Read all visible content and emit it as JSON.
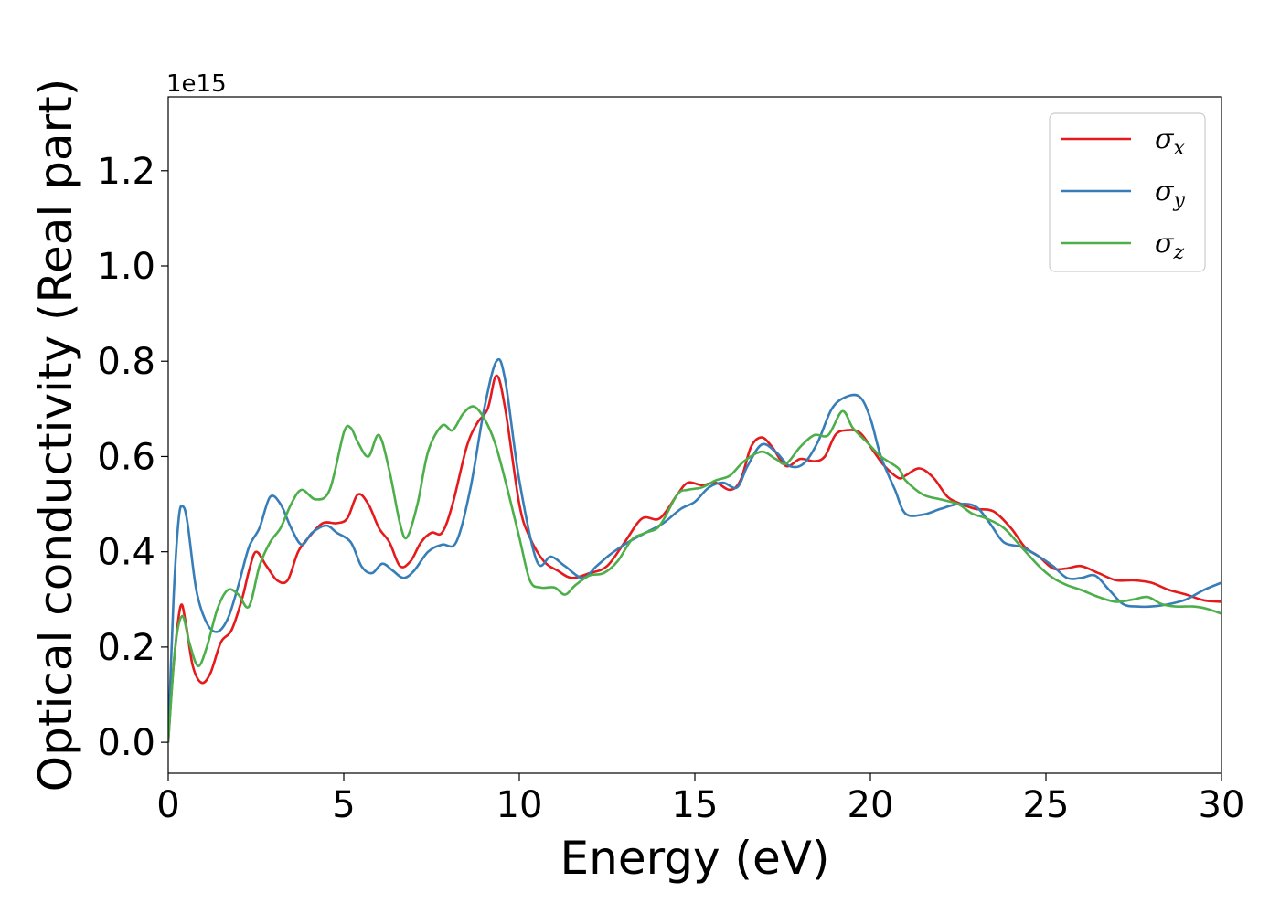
{
  "chart_data": {
    "type": "line",
    "xlabel": "Energy (eV)",
    "ylabel": "Optical conductivity (Real part)",
    "offset_text": "1e15",
    "xlim": [
      0,
      30
    ],
    "ylim": [
      -0.065,
      1.355
    ],
    "xticks": [
      0,
      5,
      10,
      15,
      20,
      25,
      30
    ],
    "xtick_labels": [
      "0",
      "5",
      "10",
      "15",
      "20",
      "25",
      "30"
    ],
    "yticks": [
      0.0,
      0.2,
      0.4,
      0.6,
      0.8,
      1.0,
      1.2
    ],
    "ytick_labels": [
      "0.0",
      "0.2",
      "0.4",
      "0.6",
      "0.8",
      "1.0",
      "1.2"
    ],
    "grid": false,
    "legend_position": "top-right",
    "series": [
      {
        "name": "σx",
        "symbol": "σ",
        "subscript": "x",
        "color": "#e41a1c",
        "points": [
          [
            0,
            0.0
          ],
          [
            0.15,
            0.16
          ],
          [
            0.35,
            0.285
          ],
          [
            0.5,
            0.25
          ],
          [
            0.7,
            0.16
          ],
          [
            0.95,
            0.125
          ],
          [
            1.2,
            0.145
          ],
          [
            1.5,
            0.21
          ],
          [
            1.8,
            0.235
          ],
          [
            2.1,
            0.3
          ],
          [
            2.3,
            0.36
          ],
          [
            2.5,
            0.4
          ],
          [
            2.8,
            0.37
          ],
          [
            3.1,
            0.34
          ],
          [
            3.4,
            0.34
          ],
          [
            3.7,
            0.4
          ],
          [
            4.0,
            0.43
          ],
          [
            4.4,
            0.46
          ],
          [
            4.8,
            0.46
          ],
          [
            5.1,
            0.47
          ],
          [
            5.4,
            0.52
          ],
          [
            5.7,
            0.5
          ],
          [
            6.0,
            0.45
          ],
          [
            6.3,
            0.42
          ],
          [
            6.6,
            0.37
          ],
          [
            6.9,
            0.38
          ],
          [
            7.2,
            0.42
          ],
          [
            7.5,
            0.44
          ],
          [
            7.8,
            0.44
          ],
          [
            8.1,
            0.5
          ],
          [
            8.5,
            0.62
          ],
          [
            8.8,
            0.67
          ],
          [
            9.1,
            0.7
          ],
          [
            9.35,
            0.77
          ],
          [
            9.6,
            0.7
          ],
          [
            10.0,
            0.5
          ],
          [
            10.3,
            0.43
          ],
          [
            10.7,
            0.38
          ],
          [
            11.1,
            0.36
          ],
          [
            11.5,
            0.345
          ],
          [
            12.0,
            0.355
          ],
          [
            12.5,
            0.37
          ],
          [
            13.0,
            0.42
          ],
          [
            13.5,
            0.47
          ],
          [
            14.0,
            0.47
          ],
          [
            14.5,
            0.52
          ],
          [
            14.8,
            0.545
          ],
          [
            15.2,
            0.54
          ],
          [
            15.6,
            0.545
          ],
          [
            16.0,
            0.53
          ],
          [
            16.3,
            0.55
          ],
          [
            16.6,
            0.62
          ],
          [
            16.9,
            0.64
          ],
          [
            17.2,
            0.62
          ],
          [
            17.6,
            0.58
          ],
          [
            18.0,
            0.595
          ],
          [
            18.4,
            0.59
          ],
          [
            18.7,
            0.6
          ],
          [
            19.0,
            0.645
          ],
          [
            19.3,
            0.655
          ],
          [
            19.7,
            0.65
          ],
          [
            20.1,
            0.61
          ],
          [
            20.4,
            0.58
          ],
          [
            20.8,
            0.555
          ],
          [
            21.0,
            0.56
          ],
          [
            21.4,
            0.575
          ],
          [
            21.8,
            0.555
          ],
          [
            22.2,
            0.515
          ],
          [
            22.6,
            0.5
          ],
          [
            23.0,
            0.49
          ],
          [
            23.5,
            0.485
          ],
          [
            24.0,
            0.45
          ],
          [
            24.4,
            0.41
          ],
          [
            24.8,
            0.39
          ],
          [
            25.2,
            0.365
          ],
          [
            25.6,
            0.365
          ],
          [
            26.0,
            0.37
          ],
          [
            26.5,
            0.355
          ],
          [
            27.0,
            0.34
          ],
          [
            27.5,
            0.34
          ],
          [
            28.0,
            0.335
          ],
          [
            28.5,
            0.32
          ],
          [
            29.0,
            0.31
          ],
          [
            29.5,
            0.298
          ],
          [
            30.0,
            0.295
          ]
        ]
      },
      {
        "name": "σy",
        "symbol": "σ",
        "subscript": "y",
        "color": "#377eb8",
        "points": [
          [
            0,
            0.0
          ],
          [
            0.15,
            0.3
          ],
          [
            0.3,
            0.47
          ],
          [
            0.42,
            0.495
          ],
          [
            0.55,
            0.46
          ],
          [
            0.8,
            0.32
          ],
          [
            1.1,
            0.25
          ],
          [
            1.4,
            0.232
          ],
          [
            1.7,
            0.26
          ],
          [
            2.0,
            0.33
          ],
          [
            2.3,
            0.41
          ],
          [
            2.6,
            0.45
          ],
          [
            2.9,
            0.515
          ],
          [
            3.2,
            0.5
          ],
          [
            3.5,
            0.45
          ],
          [
            3.8,
            0.415
          ],
          [
            4.1,
            0.44
          ],
          [
            4.5,
            0.455
          ],
          [
            4.8,
            0.44
          ],
          [
            5.2,
            0.42
          ],
          [
            5.5,
            0.37
          ],
          [
            5.8,
            0.355
          ],
          [
            6.1,
            0.375
          ],
          [
            6.4,
            0.36
          ],
          [
            6.7,
            0.345
          ],
          [
            7.0,
            0.36
          ],
          [
            7.4,
            0.4
          ],
          [
            7.8,
            0.415
          ],
          [
            8.2,
            0.42
          ],
          [
            8.6,
            0.53
          ],
          [
            9.0,
            0.7
          ],
          [
            9.35,
            0.8
          ],
          [
            9.6,
            0.76
          ],
          [
            10.0,
            0.55
          ],
          [
            10.5,
            0.38
          ],
          [
            10.9,
            0.39
          ],
          [
            11.3,
            0.37
          ],
          [
            11.8,
            0.345
          ],
          [
            12.2,
            0.37
          ],
          [
            12.6,
            0.395
          ],
          [
            13.1,
            0.42
          ],
          [
            13.6,
            0.44
          ],
          [
            14.1,
            0.46
          ],
          [
            14.6,
            0.49
          ],
          [
            15.0,
            0.505
          ],
          [
            15.4,
            0.535
          ],
          [
            15.8,
            0.545
          ],
          [
            16.2,
            0.535
          ],
          [
            16.5,
            0.58
          ],
          [
            16.9,
            0.625
          ],
          [
            17.3,
            0.61
          ],
          [
            17.7,
            0.58
          ],
          [
            18.1,
            0.585
          ],
          [
            18.5,
            0.63
          ],
          [
            18.9,
            0.7
          ],
          [
            19.3,
            0.725
          ],
          [
            19.7,
            0.725
          ],
          [
            20.0,
            0.68
          ],
          [
            20.3,
            0.6
          ],
          [
            20.7,
            0.53
          ],
          [
            21.0,
            0.48
          ],
          [
            21.5,
            0.478
          ],
          [
            22.0,
            0.49
          ],
          [
            22.5,
            0.5
          ],
          [
            23.0,
            0.495
          ],
          [
            23.4,
            0.46
          ],
          [
            23.8,
            0.42
          ],
          [
            24.3,
            0.41
          ],
          [
            24.8,
            0.39
          ],
          [
            25.2,
            0.37
          ],
          [
            25.6,
            0.345
          ],
          [
            26.0,
            0.345
          ],
          [
            26.4,
            0.35
          ],
          [
            26.8,
            0.32
          ],
          [
            27.2,
            0.29
          ],
          [
            27.6,
            0.285
          ],
          [
            28.0,
            0.285
          ],
          [
            28.5,
            0.29
          ],
          [
            29.0,
            0.3
          ],
          [
            29.5,
            0.32
          ],
          [
            30.0,
            0.335
          ]
        ]
      },
      {
        "name": "σz",
        "symbol": "σ",
        "subscript": "z",
        "color": "#4daf4a",
        "points": [
          [
            0,
            0.0
          ],
          [
            0.2,
            0.2
          ],
          [
            0.4,
            0.265
          ],
          [
            0.6,
            0.21
          ],
          [
            0.85,
            0.16
          ],
          [
            1.1,
            0.2
          ],
          [
            1.4,
            0.28
          ],
          [
            1.7,
            0.32
          ],
          [
            2.0,
            0.31
          ],
          [
            2.3,
            0.285
          ],
          [
            2.6,
            0.37
          ],
          [
            2.9,
            0.42
          ],
          [
            3.2,
            0.45
          ],
          [
            3.5,
            0.5
          ],
          [
            3.8,
            0.53
          ],
          [
            4.2,
            0.51
          ],
          [
            4.6,
            0.53
          ],
          [
            5.0,
            0.65
          ],
          [
            5.2,
            0.66
          ],
          [
            5.4,
            0.63
          ],
          [
            5.7,
            0.6
          ],
          [
            6.0,
            0.645
          ],
          [
            6.3,
            0.57
          ],
          [
            6.6,
            0.46
          ],
          [
            6.8,
            0.43
          ],
          [
            7.1,
            0.5
          ],
          [
            7.4,
            0.61
          ],
          [
            7.8,
            0.665
          ],
          [
            8.1,
            0.655
          ],
          [
            8.4,
            0.69
          ],
          [
            8.7,
            0.705
          ],
          [
            9.0,
            0.68
          ],
          [
            9.3,
            0.63
          ],
          [
            9.6,
            0.55
          ],
          [
            10.0,
            0.43
          ],
          [
            10.3,
            0.34
          ],
          [
            10.6,
            0.325
          ],
          [
            11.0,
            0.325
          ],
          [
            11.3,
            0.31
          ],
          [
            11.6,
            0.33
          ],
          [
            12.0,
            0.35
          ],
          [
            12.4,
            0.355
          ],
          [
            12.8,
            0.38
          ],
          [
            13.2,
            0.425
          ],
          [
            13.6,
            0.44
          ],
          [
            14.0,
            0.455
          ],
          [
            14.5,
            0.52
          ],
          [
            14.8,
            0.53
          ],
          [
            15.2,
            0.535
          ],
          [
            15.6,
            0.55
          ],
          [
            16.0,
            0.56
          ],
          [
            16.4,
            0.59
          ],
          [
            16.9,
            0.61
          ],
          [
            17.3,
            0.595
          ],
          [
            17.6,
            0.585
          ],
          [
            18.0,
            0.62
          ],
          [
            18.4,
            0.645
          ],
          [
            18.8,
            0.645
          ],
          [
            19.2,
            0.695
          ],
          [
            19.5,
            0.66
          ],
          [
            19.9,
            0.63
          ],
          [
            20.3,
            0.6
          ],
          [
            20.8,
            0.575
          ],
          [
            21.0,
            0.55
          ],
          [
            21.5,
            0.52
          ],
          [
            22.0,
            0.51
          ],
          [
            22.5,
            0.5
          ],
          [
            22.9,
            0.48
          ],
          [
            23.3,
            0.47
          ],
          [
            23.8,
            0.45
          ],
          [
            24.3,
            0.41
          ],
          [
            24.8,
            0.37
          ],
          [
            25.2,
            0.345
          ],
          [
            25.6,
            0.33
          ],
          [
            26.0,
            0.32
          ],
          [
            26.5,
            0.305
          ],
          [
            27.0,
            0.295
          ],
          [
            27.5,
            0.3
          ],
          [
            27.9,
            0.305
          ],
          [
            28.3,
            0.29
          ],
          [
            28.7,
            0.285
          ],
          [
            29.2,
            0.285
          ],
          [
            29.6,
            0.28
          ],
          [
            30.0,
            0.27
          ]
        ]
      }
    ]
  }
}
